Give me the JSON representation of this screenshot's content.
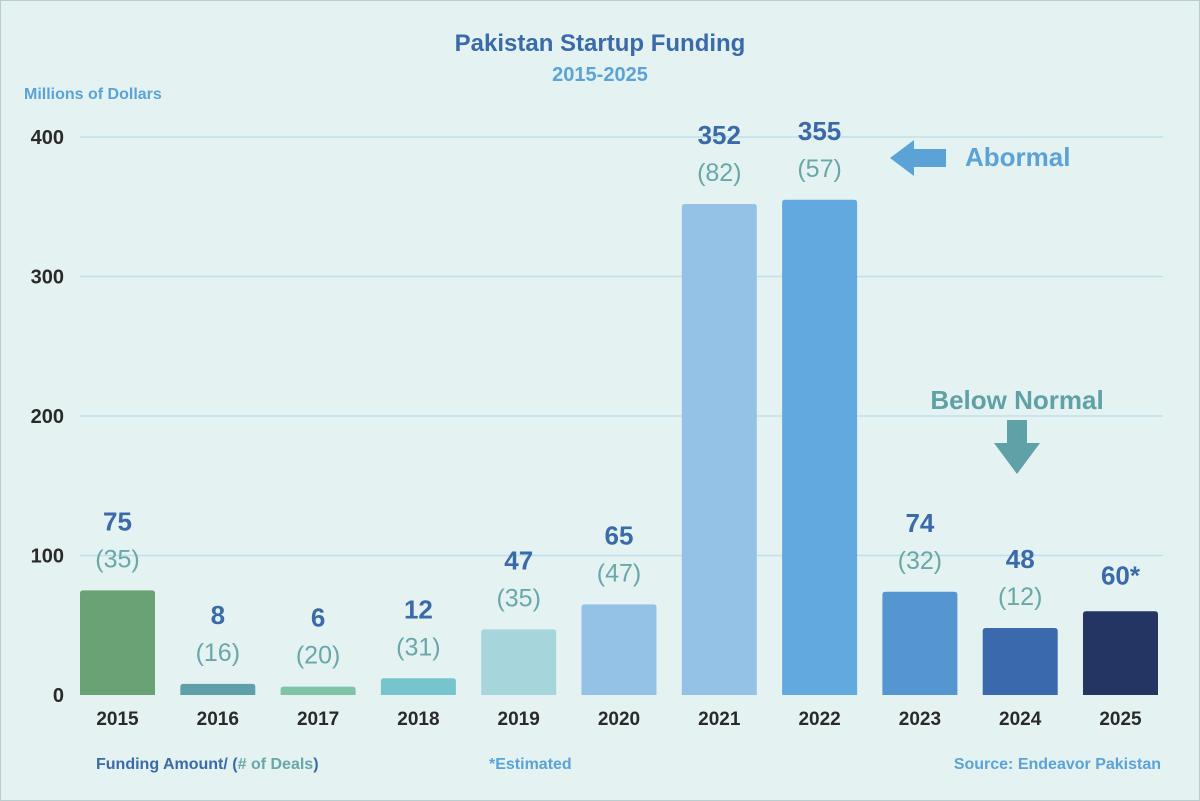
{
  "chart_data": {
    "type": "bar",
    "title": "Pakistan Startup Funding",
    "subtitle": "2015-2025",
    "ylabel": "Millions of Dollars",
    "ylim": [
      0,
      400
    ],
    "yticks": [
      "0",
      "100",
      "200",
      "300",
      "400"
    ],
    "grid": true,
    "categories": [
      "2015",
      "2016",
      "2017",
      "2018",
      "2019",
      "2020",
      "2021",
      "2022",
      "2023",
      "2024",
      "2025"
    ],
    "values": [
      75,
      8,
      6,
      12,
      47,
      65,
      352,
      355,
      74,
      48,
      60
    ],
    "value_labels": [
      "75",
      "8",
      "6",
      "12",
      "47",
      "65",
      "352",
      "355",
      "74",
      "48",
      "60*"
    ],
    "deal_labels": [
      "(35)",
      "(16)",
      "(20)",
      "(31)",
      "(35)",
      "(47)",
      "(82)",
      "(57)",
      "(32)",
      "(12)",
      ""
    ],
    "bar_colors": [
      "#6ba274",
      "#5e9fa8",
      "#7fc3a8",
      "#78c4cc",
      "#a6d6dc",
      "#93c2e6",
      "#93c2e6",
      "#62a9df",
      "#5596d1",
      "#3a6aad",
      "#243563"
    ],
    "annotations": [
      {
        "text": "Abormal",
        "arrow": "left",
        "target": "2022"
      },
      {
        "text": "Below Normal",
        "arrow": "down",
        "target": "2024"
      }
    ],
    "footer": {
      "legend_a": "Funding Amount/ (",
      "legend_b": "# of Deals",
      "legend_c": ")",
      "note": "*Estimated",
      "source": "Source: Endeavor Pakistan"
    }
  },
  "colors": {
    "title": "#3a6aa8",
    "accent": "#5ba3d6",
    "teal": "#6aa7a9",
    "grid": "#bfe0ea",
    "axis_text": "#2a2a2a",
    "background": "#e4f2f1"
  }
}
